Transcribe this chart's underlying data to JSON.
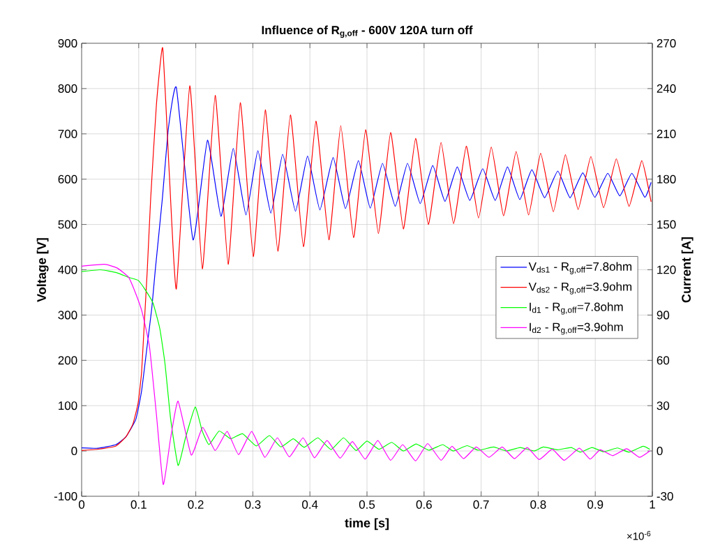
{
  "chart_data": {
    "type": "line",
    "title": "Influence of  R$_{g,off}$ - 600V 120A turn off",
    "xlabel": "time [s]",
    "ylabel": "Voltage [V]",
    "y2label": "Current [A]",
    "annotations": [
      "×10$^{-6}$"
    ],
    "xlim": [
      0,
      1
    ],
    "xticks": [
      0,
      0.1,
      0.2,
      0.3,
      0.4,
      0.5,
      0.6,
      0.7,
      0.8,
      0.9,
      1
    ],
    "ylim": [
      -100,
      900
    ],
    "yticks": [
      -100,
      0,
      100,
      200,
      300,
      400,
      500,
      600,
      700,
      800,
      900
    ],
    "y2lim": [
      -30,
      270
    ],
    "y2ticks": [
      -30,
      0,
      30,
      60,
      90,
      120,
      150,
      180,
      210,
      240,
      270
    ],
    "grid": true,
    "legend": "right",
    "series": [
      {
        "name": "V$_{ds1}$ - R$_{g,off}$=7.8ohm",
        "color": "#0000ff",
        "x": [
          0,
          0.029,
          0.06,
          0.078,
          0.095,
          0.105,
          0.115,
          0.123,
          0.129,
          0.1415,
          0.152,
          0.166,
          0.1952,
          0.2205,
          0.2441,
          0.2657,
          0.288,
          0.3088,
          0.3316,
          0.3523,
          0.3747,
          0.3959,
          0.4175,
          0.4407,
          0.4623,
          0.485,
          0.5057,
          0.5272,
          0.5495,
          0.571,
          0.5933,
          0.6152,
          0.6367,
          0.6582,
          0.6801,
          0.7028,
          0.7247,
          0.7462,
          0.7677,
          0.7888,
          0.8111,
          0.8343,
          0.8558,
          0.8781,
          0.8992,
          0.9219,
          0.943,
          0.9641,
          0.9868,
          0.9978
        ],
        "values": [
          7,
          6,
          14,
          32,
          70,
          132,
          234,
          316,
          399,
          558,
          712,
          802,
          466,
          686,
          518,
          668,
          521,
          663,
          525,
          655,
          529,
          651,
          532,
          648,
          535,
          641,
          536,
          635,
          540,
          635,
          546,
          630,
          551,
          627,
          553,
          623,
          553,
          627,
          555,
          621,
          559,
          618,
          559,
          614,
          560,
          613,
          563,
          613,
          560,
          593
        ]
      },
      {
        "name": "V$_{ds2}$ - R$_{g,off}$=3.9ohm",
        "color": "#ff0000",
        "x": [
          0,
          0.029,
          0.06,
          0.078,
          0.09,
          0.099,
          0.105,
          0.11,
          0.115,
          0.121,
          0.131,
          0.142,
          0.1537,
          0.166,
          0.1895,
          0.2115,
          0.234,
          0.2567,
          0.278,
          0.3007,
          0.3218,
          0.3438,
          0.3658,
          0.3886,
          0.4105,
          0.4333,
          0.4541,
          0.4765,
          0.4976,
          0.52,
          0.5414,
          0.5637,
          0.5852,
          0.6075,
          0.6298,
          0.6517,
          0.674,
          0.6955,
          0.7178,
          0.7393,
          0.7613,
          0.7832,
          0.8043,
          0.8266,
          0.8477,
          0.87,
          0.8923,
          0.9146,
          0.9369,
          0.9592,
          0.9815,
          0.9978
        ],
        "values": [
          1,
          4,
          11,
          32,
          60,
          106,
          173,
          286,
          399,
          558,
          764,
          890,
          610,
          358,
          806,
          402,
          785,
          412,
          769,
          429,
          753,
          441,
          742,
          451,
          728,
          466,
          718,
          471,
          709,
          480,
          703,
          490,
          690,
          500,
          681,
          502,
          673,
          514,
          671,
          519,
          661,
          521,
          657,
          528,
          654,
          533,
          650,
          537,
          645,
          540,
          641,
          550
        ]
      },
      {
        "name": "I$_{d1}$ - R$_{g,off}$=7.8ohm",
        "color": "#00ff00",
        "axis": "y2",
        "x": [
          0,
          0.033,
          0.062,
          0.082,
          0.099,
          0.111,
          0.125,
          0.137,
          0.146,
          0.156,
          0.169,
          0.182,
          0.199,
          0.211,
          0.223,
          0.241,
          0.261,
          0.282,
          0.306,
          0.329,
          0.349,
          0.371,
          0.39,
          0.414,
          0.437,
          0.459,
          0.481,
          0.5,
          0.5211,
          0.5434,
          0.5637,
          0.586,
          0.6083,
          0.6327,
          0.6509,
          0.6753,
          0.6955,
          0.7219,
          0.7442,
          0.7686,
          0.7929,
          0.8091,
          0.8335,
          0.8578,
          0.874,
          0.8943,
          0.9146,
          0.9389,
          0.9592,
          0.9836,
          0.9957
        ],
        "values": [
          118.8,
          120,
          118,
          115,
          113,
          107,
          98,
          81,
          58,
          21,
          -9.6,
          8.7,
          29.1,
          13.5,
          4.2,
          13.2,
          8.1,
          11.4,
          3.3,
          10.2,
          2.7,
          8.1,
          2.4,
          8.7,
          0.9,
          8.7,
          0.3,
          6.6,
          1.1,
          5.7,
          0,
          4.6,
          0.5,
          4.2,
          0,
          3.5,
          0.5,
          2.6,
          0,
          2.3,
          0,
          2.6,
          0.8,
          2.3,
          -0.8,
          2.3,
          -0.5,
          2,
          -0.8,
          3.1,
          1.1
        ]
      },
      {
        "name": "I$_{d2}$ - R$_{g,off}$=3.9ohm",
        "color": "#ff00ff",
        "axis": "y2",
        "x": [
          0,
          0.04,
          0.062,
          0.082,
          0.094,
          0.106,
          0.119,
          0.131,
          0.143,
          0.156,
          0.169,
          0.192,
          0.212,
          0.234,
          0.255,
          0.275,
          0.298,
          0.321,
          0.343,
          0.364,
          0.388,
          0.408,
          0.43,
          0.453,
          0.4744,
          0.4968,
          0.519,
          0.5414,
          0.5625,
          0.5852,
          0.6063,
          0.6298,
          0.6489,
          0.6692,
          0.6915,
          0.7138,
          0.7369,
          0.7584,
          0.7807,
          0.8018,
          0.8245,
          0.8456,
          0.872,
          0.8911,
          0.9085,
          0.9308,
          0.9552,
          0.9775,
          0.9957
        ],
        "values": [
          122.4,
          123.6,
          121.2,
          115.2,
          105,
          92,
          68.7,
          24.3,
          -22.2,
          8.7,
          33,
          -2.7,
          15.6,
          0.3,
          12.9,
          -2.4,
          12.9,
          -4.2,
          8.7,
          -3.9,
          8.7,
          -4.5,
          6.9,
          -4.8,
          6.2,
          -5.4,
          6.9,
          -6.2,
          4.2,
          -6.6,
          4.9,
          -6.2,
          3.1,
          -5.1,
          2.6,
          -4.2,
          2.6,
          -5.1,
          2.3,
          -5.7,
          1.1,
          -6.2,
          1.8,
          -5.4,
          0.8,
          -3.1,
          1.5,
          -4.2,
          0
        ]
      }
    ]
  }
}
